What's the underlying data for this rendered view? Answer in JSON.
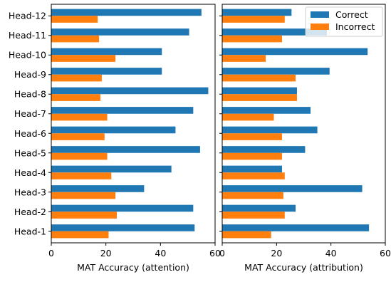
{
  "colors": {
    "correct": "#1f77b4",
    "incorrect": "#ff7f0e",
    "axis": "#000000",
    "background": "#ffffff"
  },
  "chart_data": [
    {
      "type": "bar",
      "orientation": "horizontal",
      "categories": [
        "Head-1",
        "Head-2",
        "Head-3",
        "Head-4",
        "Head-5",
        "Head-6",
        "Head-7",
        "Head-8",
        "Head-9",
        "Head-10",
        "Head-11",
        "Head-12"
      ],
      "series": [
        {
          "name": "Correct",
          "values": [
            52.5,
            52.0,
            34.0,
            44.0,
            54.5,
            45.5,
            52.0,
            57.5,
            40.5,
            40.5,
            50.5,
            55.0
          ]
        },
        {
          "name": "Incorrect",
          "values": [
            21.0,
            24.0,
            23.5,
            22.0,
            20.5,
            19.5,
            20.5,
            18.0,
            18.5,
            23.5,
            17.5,
            17.0
          ]
        }
      ],
      "xlabel": "MAT Accuracy (attention)",
      "ylabel": "",
      "xlim": [
        0,
        60
      ],
      "xticks": [
        0,
        20,
        40,
        60
      ],
      "grid": false
    },
    {
      "type": "bar",
      "orientation": "horizontal",
      "categories": [
        "Head-1",
        "Head-2",
        "Head-3",
        "Head-4",
        "Head-5",
        "Head-6",
        "Head-7",
        "Head-8",
        "Head-9",
        "Head-10",
        "Head-11",
        "Head-12"
      ],
      "series": [
        {
          "name": "Correct",
          "values": [
            54.0,
            27.0,
            51.5,
            22.0,
            30.5,
            35.0,
            32.5,
            27.5,
            39.5,
            53.5,
            38.5,
            25.5
          ]
        },
        {
          "name": "Incorrect",
          "values": [
            18.0,
            23.0,
            22.5,
            23.0,
            22.0,
            22.0,
            19.0,
            27.5,
            27.0,
            16.0,
            22.0,
            23.0
          ]
        }
      ],
      "xlabel": "MAT Accuracy (attribution)",
      "ylabel": "",
      "xlim": [
        0,
        60
      ],
      "xticks": [
        0,
        20,
        40,
        60
      ],
      "grid": false,
      "legend": {
        "position": "top-right",
        "entries": [
          "Correct",
          "Incorrect"
        ]
      }
    }
  ]
}
